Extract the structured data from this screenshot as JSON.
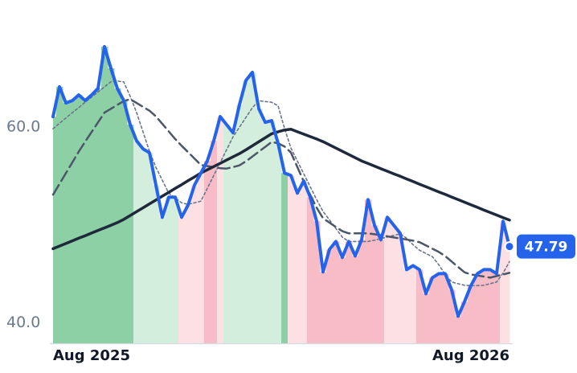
{
  "chart_data": {
    "type": "line",
    "categories": [
      "Aug 2025",
      null,
      null,
      null,
      null,
      null,
      null,
      null,
      null,
      null,
      null,
      null,
      null,
      null,
      null,
      null,
      null,
      null,
      null,
      null,
      null,
      null,
      null,
      null,
      null,
      null,
      null,
      null,
      null,
      null,
      null,
      null,
      null,
      null,
      null,
      null,
      null,
      null,
      null,
      null,
      null,
      null,
      null,
      null,
      null,
      null,
      null,
      null,
      null,
      null,
      null,
      null,
      null,
      null,
      null,
      null,
      null,
      null,
      null,
      null,
      null,
      null,
      null,
      null,
      null,
      null,
      null,
      null,
      null,
      null,
      null,
      "Aug 2026"
    ],
    "ylim": [
      37.9,
      73
    ],
    "yticks": [
      {
        "value": 60,
        "label": "60.0"
      },
      {
        "value": 40,
        "label": "40.0"
      }
    ],
    "grid": false,
    "series": [
      {
        "color": "#2563eb",
        "style": "solid",
        "width": 4,
        "values": [
          61.07,
          64.12,
          62.47,
          62.72,
          63.29,
          62.72,
          63.29,
          63.95,
          68.23,
          66.01,
          63.95,
          62.72,
          60.25,
          58.6,
          57.78,
          57.37,
          54.07,
          50.78,
          52.84,
          52.84,
          50.78,
          52.02,
          54.07,
          55.31,
          56.54,
          58.6,
          61.07,
          60.25,
          59.42,
          62.3,
          64.77,
          65.6,
          61.89,
          60.49,
          60.66,
          58.35,
          55.31,
          55.06,
          53.25,
          54.49,
          52.84,
          50.37,
          45.19,
          47.49,
          48.31,
          46.67,
          48.31,
          46.83,
          48.48,
          52.59,
          49.96,
          48.48,
          50.78,
          49.96,
          49.14,
          45.43,
          45.84,
          45.43,
          42.96,
          44.61,
          45.02,
          45.02,
          43.37,
          40.66,
          42.14,
          43.79,
          45.02,
          45.43,
          45.43,
          45.02,
          50.37,
          47.79
        ]
      },
      {
        "color": "#1e293b",
        "style": "solid",
        "width": 3.5,
        "values": [
          47.57,
          47.84,
          48.1,
          48.37,
          48.64,
          48.9,
          49.17,
          49.44,
          49.7,
          49.97,
          50.24,
          50.57,
          50.96,
          51.36,
          51.75,
          52.15,
          52.54,
          52.94,
          53.33,
          53.73,
          54.12,
          54.52,
          54.91,
          55.31,
          55.64,
          55.97,
          56.3,
          56.63,
          56.96,
          57.29,
          57.68,
          58.09,
          58.5,
          58.91,
          59.32,
          59.53,
          59.71,
          59.78,
          59.53,
          59.28,
          59.03,
          58.79,
          58.52,
          58.19,
          57.86,
          57.53,
          57.2,
          56.87,
          56.54,
          56.28,
          56.02,
          55.75,
          55.49,
          55.23,
          54.97,
          54.7,
          54.44,
          54.17,
          53.91,
          53.64,
          53.38,
          53.12,
          52.85,
          52.59,
          52.33,
          52.06,
          51.8,
          51.53,
          51.27,
          51.01,
          50.75,
          50.49
        ]
      },
      {
        "color": "#4b5768",
        "style": "dashed",
        "width": 2.5,
        "values": [
          53.09,
          54.19,
          55.29,
          56.39,
          57.5,
          58.52,
          59.5,
          60.49,
          61.48,
          61.88,
          62.27,
          62.67,
          62.86,
          62.47,
          62.07,
          61.68,
          61.1,
          60.33,
          59.56,
          58.79,
          58.1,
          57.45,
          56.79,
          56.13,
          56.02,
          55.91,
          55.8,
          55.76,
          55.92,
          56.09,
          56.5,
          56.99,
          57.49,
          57.98,
          58.48,
          58.35,
          58.02,
          57.41,
          55.92,
          54.44,
          53.09,
          51.77,
          50.67,
          50.23,
          49.79,
          49.36,
          49.14,
          49.14,
          49.14,
          49.14,
          49.05,
          48.95,
          48.83,
          48.72,
          48.62,
          48.5,
          48.39,
          48.23,
          47.9,
          47.57,
          47.24,
          46.81,
          46.26,
          45.7,
          45.16,
          44.94,
          44.83,
          44.72,
          44.61,
          44.77,
          44.94,
          45.1
        ]
      },
      {
        "color": "#6b7589",
        "style": "dotted",
        "width": 1.6,
        "values": [
          59.83,
          60.39,
          60.93,
          61.48,
          62.0,
          62.54,
          63.06,
          63.59,
          64.11,
          64.64,
          64.71,
          64.62,
          63.15,
          61.48,
          59.51,
          57.53,
          55.89,
          54.57,
          53.25,
          52.76,
          52.26,
          52.1,
          52.26,
          52.43,
          53.74,
          55.06,
          56.38,
          57.69,
          59.01,
          60.0,
          60.99,
          61.98,
          62.7,
          62.62,
          62.54,
          62.18,
          59.9,
          57.86,
          56.54,
          55.23,
          53.91,
          52.59,
          51.38,
          50.51,
          49.63,
          48.75,
          48.31,
          48.31,
          48.31,
          48.31,
          48.44,
          48.6,
          48.76,
          48.93,
          49.09,
          48.64,
          47.98,
          47.41,
          47.08,
          46.75,
          45.93,
          44.94,
          44.16,
          43.99,
          43.83,
          43.79,
          43.79,
          43.83,
          43.99,
          44.16,
          45.08,
          46.25
        ]
      }
    ],
    "area_colors": [
      "#8ed0a6",
      "#8ed0a6",
      "#8ed0a6",
      "#8ed0a6",
      "#8ed0a6",
      "#8ed0a6",
      "#8ed0a6",
      "#8ed0a6",
      "#8ed0a6",
      "#8ed0a6",
      "#8ed0a6",
      "#8ed0a6",
      "#8ed0a6",
      "#d3eedc",
      "#d3eedc",
      "#d3eedc",
      "#d3eedc",
      "#d3eedc",
      "#d3eedc",
      "#d3eedc",
      "#fde0e4",
      "#fde0e4",
      "#fde0e4",
      "#fde0e4",
      "#f8bcc6",
      "#f8bcc6",
      "#fde0e4",
      "#d3eedc",
      "#d3eedc",
      "#d3eedc",
      "#d3eedc",
      "#d3eedc",
      "#d3eedc",
      "#d3eedc",
      "#d3eedc",
      "#d3eedc",
      "#8ed0a6",
      "#fde0e4",
      "#fde0e4",
      "#fde0e4",
      "#f8bcc6",
      "#f8bcc6",
      "#f8bcc6",
      "#f8bcc6",
      "#f8bcc6",
      "#f8bcc6",
      "#f8bcc6",
      "#f8bcc6",
      "#f8bcc6",
      "#f8bcc6",
      "#f8bcc6",
      "#f8bcc6",
      "#fde0e4",
      "#fde0e4",
      "#fde0e4",
      "#fde0e4",
      "#fde0e4",
      "#f8bcc6",
      "#f8bcc6",
      "#f8bcc6",
      "#f8bcc6",
      "#f8bcc6",
      "#f8bcc6",
      "#f8bcc6",
      "#f8bcc6",
      "#f8bcc6",
      "#f8bcc6",
      "#f8bcc6",
      "#f8bcc6",
      "#f8bcc6",
      "#fde0e4",
      "#fde0e4"
    ]
  }
}
